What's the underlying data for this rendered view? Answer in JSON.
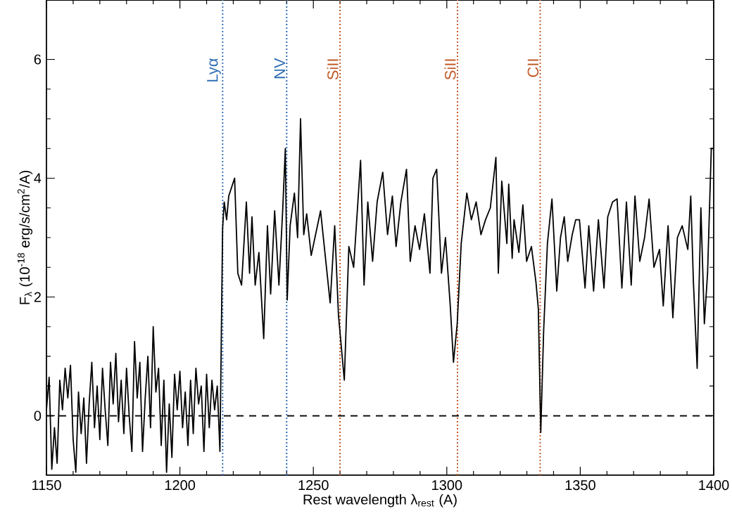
{
  "chart_data": {
    "type": "line",
    "xlabel": "Rest wavelength λ$_{rest}$ (A)",
    "ylabel": "F$_{λ}$ (10$^{-18}$ erg/s/cm$^{2}$/A)",
    "xlim": [
      1150,
      1400
    ],
    "ylim": [
      -1,
      7
    ],
    "xticks": [
      1150,
      1200,
      1250,
      1300,
      1350,
      1400
    ],
    "yticks": [
      0,
      2,
      4,
      6
    ],
    "x": [
      1150,
      1151,
      1152,
      1153,
      1154,
      1155,
      1156,
      1157,
      1158,
      1159,
      1160,
      1161,
      1162,
      1163,
      1164,
      1165,
      1166,
      1167,
      1168,
      1169,
      1170,
      1171,
      1172,
      1173,
      1174,
      1175,
      1176,
      1177,
      1178,
      1179,
      1180,
      1181,
      1182,
      1183,
      1184,
      1185,
      1186,
      1187,
      1188,
      1189,
      1190,
      1191,
      1192,
      1193,
      1194,
      1195,
      1196,
      1197,
      1198,
      1199,
      1200,
      1201,
      1202,
      1203,
      1204,
      1205,
      1206,
      1207,
      1208,
      1209,
      1210,
      1211,
      1212,
      1213,
      1214,
      1215,
      1216,
      1216.6,
      1217.5,
      1218.3,
      1220.5,
      1221.7,
      1223.1,
      1224.9,
      1226.1,
      1227,
      1228.2,
      1229.6,
      1231.4,
      1232.8,
      1234,
      1235.5,
      1237.1,
      1238.5,
      1239.5,
      1240.2,
      1241.3,
      1242.9,
      1244.1,
      1245.2,
      1246.4,
      1247.5,
      1249.2,
      1252.7,
      1256.3,
      1258,
      1259.4,
      1261.6,
      1263.3,
      1265.1,
      1267.7,
      1269,
      1270.4,
      1272.2,
      1273.9,
      1276,
      1277.8,
      1279.6,
      1281,
      1282.8,
      1284.9,
      1286.3,
      1288.1,
      1289.8,
      1291.6,
      1293.7,
      1294.8,
      1296.2,
      1298,
      1299.5,
      1301.3,
      1302.5,
      1303.9,
      1305.4,
      1307.5,
      1309.2,
      1311,
      1312.8,
      1314.5,
      1316.3,
      1318.4,
      1319.3,
      1320.6,
      1322.5,
      1323.2,
      1324.5,
      1325.2,
      1327,
      1328.5,
      1329.9,
      1331.7,
      1333.4,
      1334.3,
      1335.2,
      1336.3,
      1337.7,
      1339.4,
      1341.2,
      1342.6,
      1344,
      1345.3,
      1347,
      1348.3,
      1349.7,
      1351.8,
      1353.2,
      1355,
      1356.8,
      1358.9,
      1360.3,
      1362.1,
      1363.8,
      1365.6,
      1367.3,
      1369.1,
      1370.5,
      1372.3,
      1374.1,
      1375.8,
      1377.6,
      1379.7,
      1381.1,
      1382.9,
      1384.7,
      1386.4,
      1388.2,
      1390.3,
      1391.4,
      1392.4,
      1393.8,
      1395.2,
      1396.5,
      1397.7,
      1399.1,
      1400
    ],
    "series": [
      {
        "color": "#000000",
        "values": [
          0.1,
          0.65,
          -0.9,
          -0.2,
          -0.8,
          0.6,
          0.1,
          0.8,
          0.3,
          0.85,
          -0.4,
          -0.95,
          0.4,
          -0.3,
          0.3,
          -0.8,
          0.2,
          0.9,
          -0.2,
          0.5,
          -0.4,
          0.8,
          0.1,
          -0.5,
          0.9,
          0.2,
          1.05,
          -0.1,
          0.6,
          -0.3,
          0.8,
          0.0,
          -0.6,
          1.25,
          0.3,
          0.9,
          -0.6,
          0.3,
          1.0,
          -0.2,
          1.5,
          0.4,
          0.8,
          -0.5,
          0.6,
          -0.95,
          0.2,
          -0.7,
          0.7,
          0.1,
          0.75,
          -0.2,
          0.4,
          -0.5,
          0.6,
          -0.3,
          0.8,
          0.2,
          0.5,
          -0.6,
          0.7,
          -0.2,
          0.6,
          0.1,
          0.5,
          -0.6,
          3.15,
          3.6,
          3.3,
          3.7,
          4.0,
          2.4,
          2.2,
          3.6,
          2.4,
          3.35,
          2.2,
          2.75,
          1.3,
          3.2,
          2.05,
          3.45,
          2.2,
          3.45,
          4.5,
          1.95,
          3.2,
          3.75,
          3.0,
          5.0,
          3.05,
          3.4,
          2.7,
          3.45,
          1.9,
          3.2,
          1.7,
          0.6,
          2.85,
          2.5,
          4.3,
          2.2,
          3.6,
          2.6,
          3.6,
          4.1,
          3.05,
          3.7,
          2.85,
          3.6,
          4.15,
          2.6,
          3.2,
          2.8,
          3.4,
          2.4,
          4.0,
          4.15,
          2.4,
          3.0,
          1.85,
          0.9,
          1.55,
          2.9,
          3.75,
          3.3,
          3.6,
          3.05,
          3.3,
          3.5,
          4.35,
          2.4,
          3.95,
          2.9,
          3.9,
          2.65,
          3.3,
          2.75,
          3.55,
          2.6,
          2.85,
          2.25,
          1.8,
          -0.28,
          1.45,
          2.9,
          3.65,
          2.1,
          3.0,
          3.35,
          2.6,
          3.05,
          3.3,
          3.3,
          2.15,
          3.2,
          2.1,
          3.3,
          2.15,
          3.35,
          3.6,
          3.65,
          2.15,
          3.6,
          2.2,
          3.7,
          2.6,
          3.0,
          3.65,
          2.5,
          2.8,
          1.85,
          3.2,
          1.65,
          3.0,
          3.2,
          2.8,
          3.7,
          2.25,
          0.8,
          3.5,
          1.55,
          2.4,
          4.5,
          4.5
        ]
      }
    ],
    "ref_lines": [
      {
        "axis": "x",
        "value": 1216,
        "label": "Lyα",
        "color": "#2f6db5",
        "line_style": "dotted"
      },
      {
        "axis": "x",
        "value": 1240,
        "label": "NV",
        "color": "#2f6db5",
        "line_style": "dotted"
      },
      {
        "axis": "x",
        "value": 1260,
        "label": "SiII",
        "color": "#c05a28",
        "line_style": "dotted"
      },
      {
        "axis": "x",
        "value": 1304,
        "label": "SiII",
        "color": "#c05a28",
        "line_style": "dotted"
      },
      {
        "axis": "x",
        "value": 1335,
        "label": "CII",
        "color": "#c05a28",
        "line_style": "dotted"
      },
      {
        "axis": "y",
        "value": 0,
        "color": "#000000",
        "line_style": "dashed"
      }
    ]
  }
}
